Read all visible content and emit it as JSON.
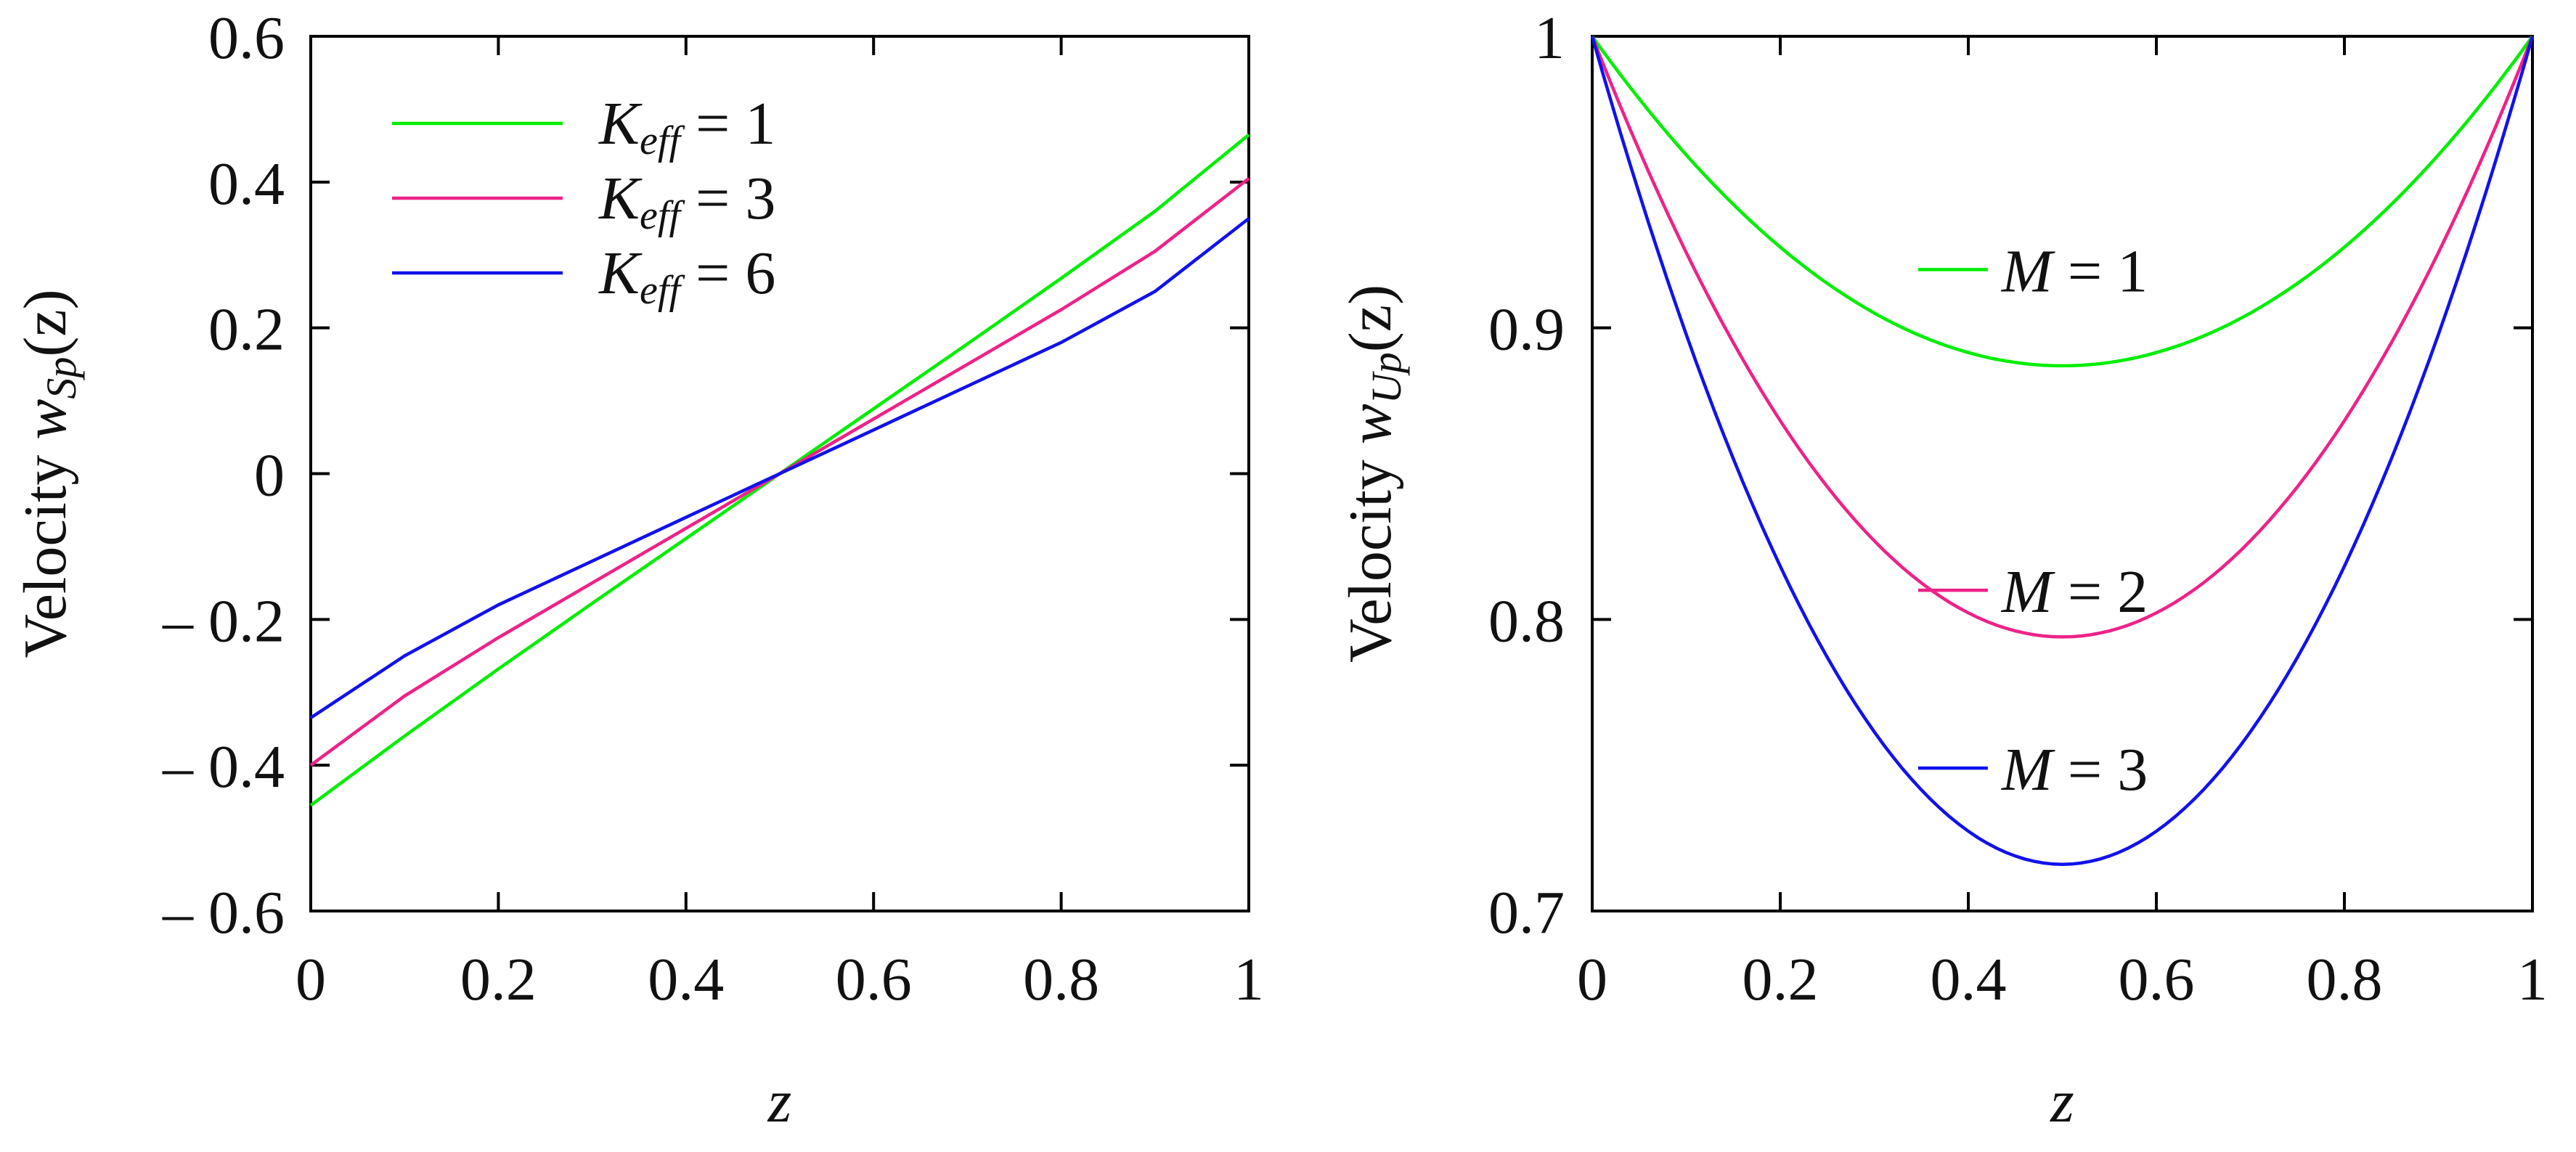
{
  "chart_data": [
    {
      "type": "line",
      "xlabel": "z",
      "ylabel": {
        "prefix": "Velocity ",
        "var": "w",
        "sub": "Sp",
        "suffix": "(z)"
      },
      "xlim": [
        0,
        1
      ],
      "ylim": [
        -0.6,
        0.6
      ],
      "x_ticks": [
        0,
        0.2,
        0.4,
        0.6,
        0.8,
        1
      ],
      "x_tick_labels": [
        "0",
        "0.2",
        "0.4",
        "0.6",
        "0.8",
        "1"
      ],
      "y_ticks": [
        -0.6,
        -0.4,
        -0.2,
        0,
        0.2,
        0.4,
        0.6
      ],
      "y_tick_labels": [
        "– 0.6",
        "– 0.4",
        "– 0.2",
        "0",
        "0.2",
        "0.4",
        "0.6"
      ],
      "legend_position": "top-left",
      "series": [
        {
          "name": "K_eff = 1",
          "legend": {
            "var": "K",
            "sub": "eff",
            "rest": " = 1"
          },
          "color": "#00ee00",
          "x": [
            0,
            0.1,
            0.2,
            0.3,
            0.4,
            0.5,
            0.6,
            0.7,
            0.8,
            0.9,
            1.0
          ],
          "y": [
            -0.455,
            -0.36,
            -0.268,
            -0.178,
            -0.089,
            0.0,
            0.089,
            0.178,
            0.268,
            0.36,
            0.465
          ]
        },
        {
          "name": "K_eff = 3",
          "legend": {
            "var": "K",
            "sub": "eff",
            "rest": " = 3"
          },
          "color": "#ee2288",
          "x": [
            0,
            0.1,
            0.2,
            0.3,
            0.4,
            0.5,
            0.6,
            0.7,
            0.8,
            0.9,
            1.0
          ],
          "y": [
            -0.4,
            -0.305,
            -0.225,
            -0.15,
            -0.075,
            0.0,
            0.075,
            0.15,
            0.225,
            0.305,
            0.405
          ]
        },
        {
          "name": "K_eff = 6",
          "legend": {
            "var": "K",
            "sub": "eff",
            "rest": " = 6"
          },
          "color": "#1111ee",
          "x": [
            0,
            0.1,
            0.2,
            0.3,
            0.4,
            0.5,
            0.6,
            0.7,
            0.8,
            0.9,
            1.0
          ],
          "y": [
            -0.335,
            -0.25,
            -0.18,
            -0.12,
            -0.06,
            0.0,
            0.06,
            0.12,
            0.18,
            0.25,
            0.35
          ]
        }
      ]
    },
    {
      "type": "line",
      "xlabel": "z",
      "ylabel": {
        "prefix": "Velocity ",
        "var": "w",
        "sub": "Up",
        "suffix": "(z)"
      },
      "xlim": [
        0,
        1
      ],
      "ylim": [
        0.7,
        1.0
      ],
      "x_ticks": [
        0,
        0.2,
        0.4,
        0.6,
        0.8,
        1
      ],
      "x_tick_labels": [
        "0",
        "0.2",
        "0.4",
        "0.6",
        "0.8",
        "1"
      ],
      "y_ticks": [
        0.7,
        0.8,
        0.9,
        1.0
      ],
      "y_tick_labels": [
        "0.7",
        "0.8",
        "0.9",
        "1"
      ],
      "series": [
        {
          "name": "M = 1",
          "legend": {
            "var": "M",
            "rest": " = 1"
          },
          "color": "#00ee00",
          "label_at": [
            0.42,
            0.92
          ],
          "curve": {
            "type": "parabola",
            "edge": 1.0,
            "min": 0.887
          }
        },
        {
          "name": "M = 2",
          "legend": {
            "var": "M",
            "rest": " = 2"
          },
          "color": "#ee2288",
          "label_at": [
            0.42,
            0.81
          ],
          "curve": {
            "type": "parabola",
            "edge": 1.0,
            "min": 0.794
          }
        },
        {
          "name": "M = 3",
          "legend": {
            "var": "M",
            "rest": " = 3"
          },
          "color": "#1111ee",
          "label_at": [
            0.42,
            0.749
          ],
          "curve": {
            "type": "parabola",
            "edge": 1.0,
            "min": 0.716
          }
        }
      ]
    }
  ]
}
